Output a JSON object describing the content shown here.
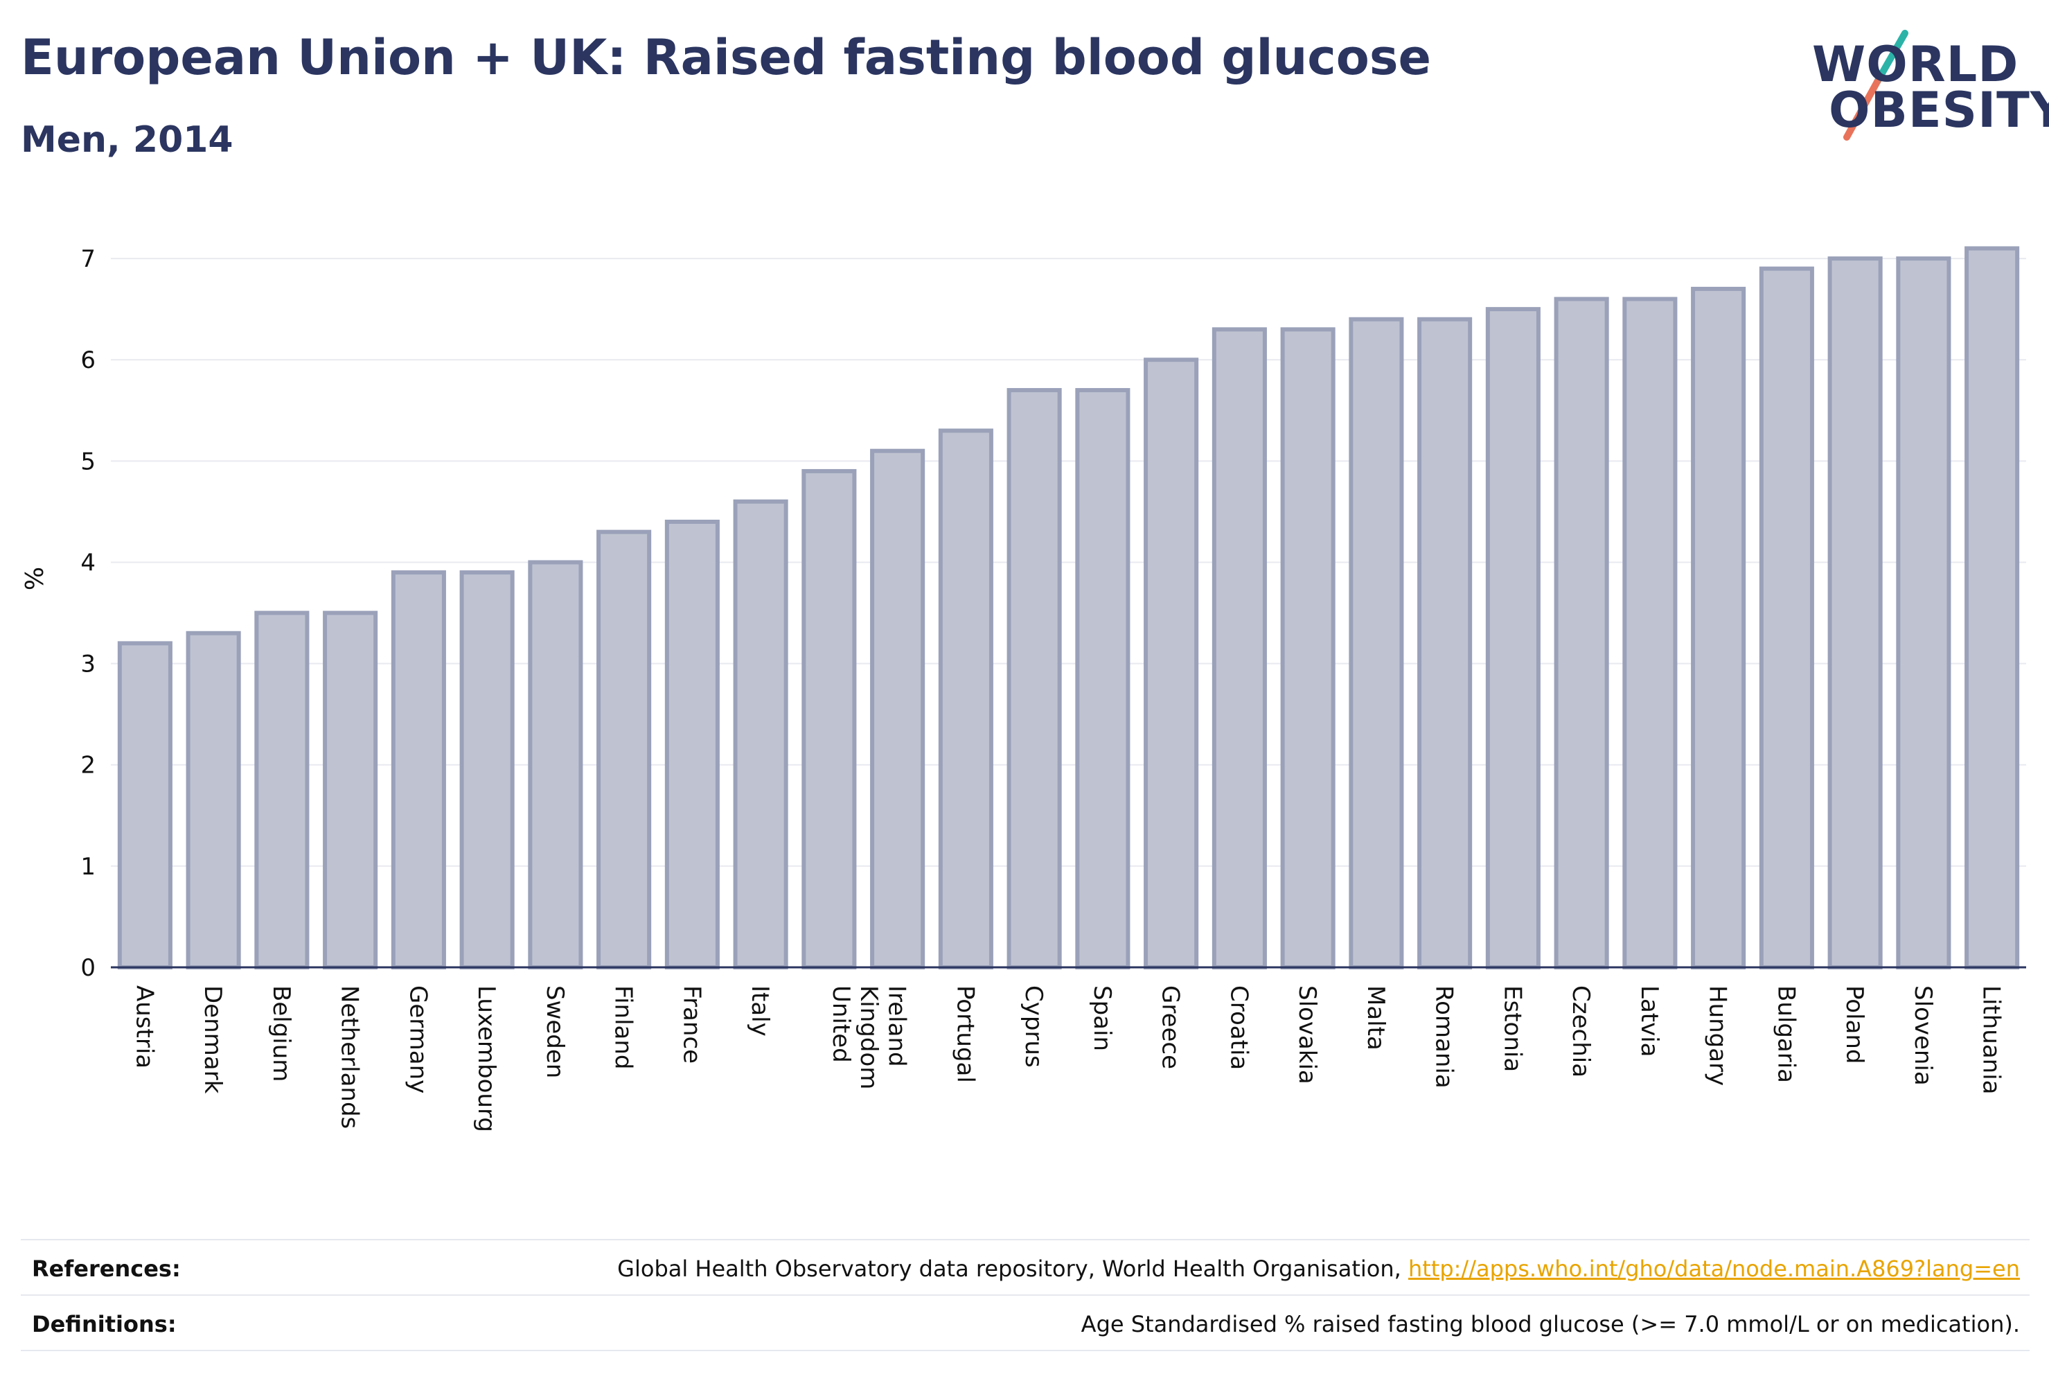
{
  "header": {
    "title": "European Union + UK: Raised fasting blood glucose",
    "subtitle": "Men, 2014"
  },
  "logo": {
    "line1": "WORLD",
    "line2": "OBESITY",
    "accent_teal": "#2bb3a8",
    "accent_coral": "#e8735a"
  },
  "chart_data": {
    "type": "bar",
    "ylabel": "%",
    "xlabel": "",
    "ylim": [
      0,
      7.5
    ],
    "yticks": [
      0,
      1,
      2,
      3,
      4,
      5,
      6,
      7
    ],
    "grid": true,
    "bar_color": "#bfc3d1",
    "bar_edge_color": "#9aa1b9",
    "categories": [
      "Austria",
      "Denmark",
      "Belgium",
      "Netherlands",
      "Germany",
      "Luxembourg",
      "Sweden",
      "Finland",
      "France",
      "Italy",
      "United Kingdom",
      "Ireland",
      "Portugal",
      "Cyprus",
      "Spain",
      "Greece",
      "Croatia",
      "Slovakia",
      "Malta",
      "Romania",
      "Estonia",
      "Czechia",
      "Latvia",
      "Hungary",
      "Bulgaria",
      "Poland",
      "Slovenia",
      "Lithuania"
    ],
    "values": [
      3.2,
      3.3,
      3.5,
      3.5,
      3.9,
      3.9,
      4.0,
      4.3,
      4.4,
      4.6,
      4.9,
      5.1,
      5.3,
      5.7,
      5.7,
      6.0,
      6.3,
      6.3,
      6.4,
      6.4,
      6.5,
      6.6,
      6.6,
      6.7,
      6.9,
      7.0,
      7.0,
      7.1
    ]
  },
  "footer": {
    "references_label": "References:",
    "references_text": "Global Health Observatory data repository, World Health Organisation, ",
    "references_link": "http://apps.who.int/gho/data/node.main.A869?lang=en",
    "definitions_label": "Definitions:",
    "definitions_text": "Age Standardised % raised fasting blood glucose (>= 7.0 mmol/L or on medication)."
  }
}
